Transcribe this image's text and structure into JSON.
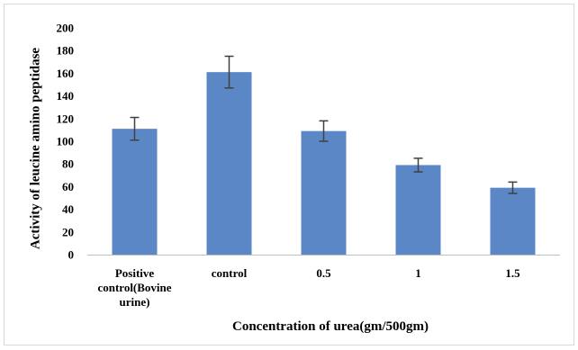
{
  "chart_data": {
    "type": "bar",
    "categories": [
      [
        "Positive",
        "control(Bovine",
        "urine)"
      ],
      [
        "control"
      ],
      [
        "0.5"
      ],
      [
        "1"
      ],
      [
        "1.5"
      ]
    ],
    "values": [
      111,
      161,
      109,
      79,
      59
    ],
    "error": [
      10,
      14,
      9,
      6,
      5
    ],
    "title": "",
    "xlabel": "Concentration of urea(gm/500gm)",
    "ylabel": "Activity of leucine amino peptidase",
    "ylim": [
      0,
      200
    ],
    "yticks": [
      0,
      20,
      40,
      60,
      80,
      100,
      120,
      140,
      160,
      180,
      200
    ],
    "grid": false,
    "bar_color": "#5B87C6",
    "error_color": "#404040"
  }
}
